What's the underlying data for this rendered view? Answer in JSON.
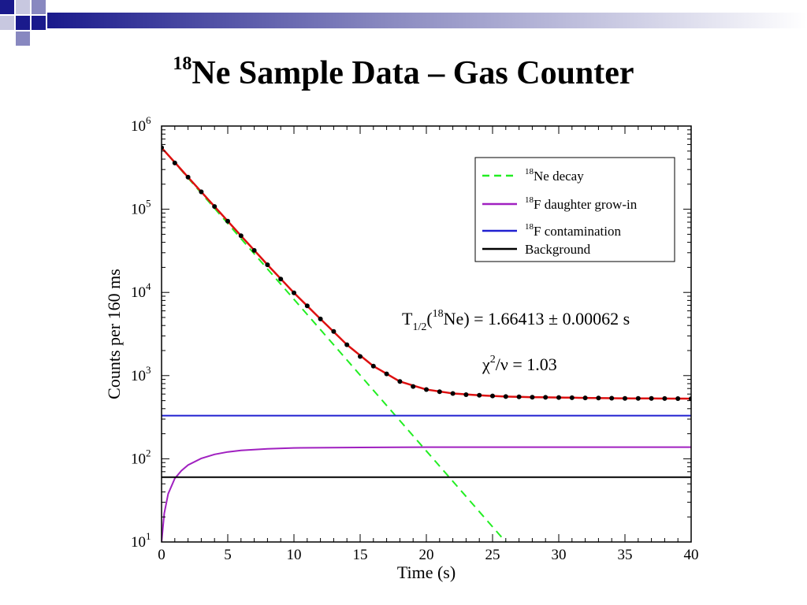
{
  "slide": {
    "title_sup": "18",
    "title_main": "Ne Sample Data – Gas Counter"
  },
  "chart_data": {
    "type": "scatter",
    "xlabel": "Time (s)",
    "ylabel": "Counts per 160 ms",
    "xlim": [
      0,
      40
    ],
    "ylim": [
      10,
      1000000
    ],
    "yscale": "log",
    "grid": false,
    "legend_position": "top-right",
    "x_ticks": [
      "0",
      "5",
      "10",
      "15",
      "20",
      "25",
      "30",
      "35",
      "40"
    ],
    "y_ticks": [
      {
        "base": "10",
        "exp": "1"
      },
      {
        "base": "10",
        "exp": "2"
      },
      {
        "base": "10",
        "exp": "3"
      },
      {
        "base": "10",
        "exp": "4"
      },
      {
        "base": "10",
        "exp": "5"
      },
      {
        "base": "10",
        "exp": "6"
      }
    ],
    "series": [
      {
        "kind": "line",
        "style": "dashed",
        "color": "#22ee22",
        "label_sup": "18",
        "label": "Ne decay",
        "x": [
          0,
          26
        ],
        "y": [
          550000,
          10
        ]
      },
      {
        "kind": "line",
        "style": "solid",
        "color": "#a020c0",
        "label_sup": "18",
        "label": "F daughter grow-in",
        "x": [
          0,
          0.2,
          0.5,
          1,
          1.5,
          2,
          3,
          4,
          5,
          6,
          8,
          10,
          15,
          20,
          30,
          40
        ],
        "y": [
          10,
          22,
          38,
          58,
          72,
          84,
          101,
          113,
          121,
          126,
          132,
          135,
          137,
          138,
          138,
          138
        ]
      },
      {
        "kind": "line",
        "style": "solid",
        "color": "#2020d0",
        "label_sup": "18",
        "label": "F contamination",
        "x": [
          0,
          40
        ],
        "y": [
          330,
          330
        ]
      },
      {
        "kind": "line",
        "style": "solid",
        "color": "#000000",
        "label_sup": "",
        "label": "Background",
        "x": [
          0,
          40
        ],
        "y": [
          60,
          60
        ]
      },
      {
        "kind": "fit",
        "style": "solid",
        "color": "#dd1010",
        "x": [
          0,
          2,
          4,
          6,
          8,
          10,
          12,
          14,
          16,
          18,
          20,
          22,
          24,
          26,
          28,
          30,
          32,
          34,
          36,
          38,
          40
        ],
        "y": [
          550000,
          243000,
          108000,
          48000,
          21500,
          9900,
          4800,
          2350,
          1300,
          850,
          680,
          610,
          580,
          560,
          550,
          545,
          540,
          535,
          532,
          530,
          528
        ]
      },
      {
        "kind": "points",
        "color": "#000000",
        "x": [
          0,
          1,
          2,
          3,
          4,
          5,
          6,
          7,
          8,
          9,
          10,
          11,
          12,
          13,
          14,
          15,
          16,
          17,
          18,
          19,
          20,
          21,
          22,
          23,
          24,
          25,
          26,
          27,
          28,
          29,
          30,
          31,
          32,
          33,
          34,
          35,
          36,
          37,
          38,
          39,
          40
        ],
        "y": [
          550000,
          360000,
          243000,
          162000,
          108000,
          72000,
          48000,
          32000,
          21500,
          14500,
          9900,
          6900,
          4800,
          3400,
          2350,
          1700,
          1300,
          1050,
          850,
          740,
          680,
          640,
          610,
          590,
          580,
          570,
          560,
          555,
          550,
          548,
          545,
          542,
          540,
          537,
          535,
          533,
          532,
          531,
          530,
          529,
          528
        ]
      }
    ],
    "annotations": {
      "half_life_T": "T",
      "half_life_sub": "1/2",
      "half_life_open": "(",
      "half_life_sup": "18",
      "half_life_rest": "Ne) = 1.66413 ± 0.00062 s",
      "chi_symbol": "χ",
      "chi_sup": "2",
      "chi_rest": "/ν = 1.03"
    }
  }
}
